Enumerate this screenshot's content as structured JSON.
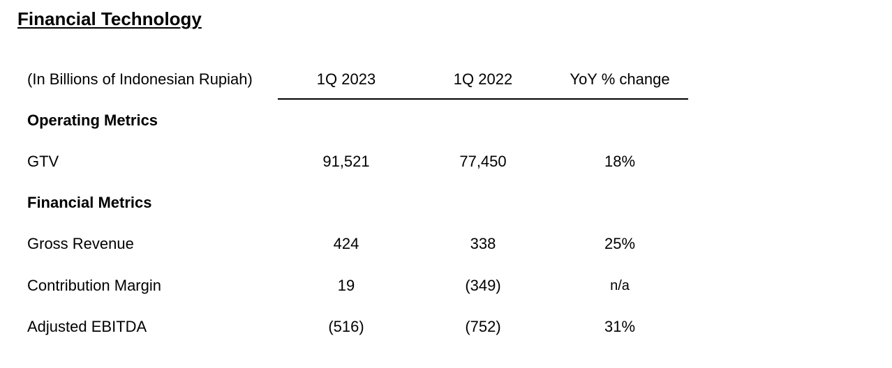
{
  "title": "Financial Technology",
  "table": {
    "unit_label": "(In Billions of Indonesian Rupiah)",
    "columns": [
      "1Q 2023",
      "1Q 2022",
      "YoY % change"
    ],
    "sections": [
      {
        "label": "Operating Metrics",
        "rows": [
          {
            "label": "GTV",
            "values": [
              "91,521",
              "77,450",
              "18%"
            ]
          }
        ]
      },
      {
        "label": "Financial Metrics",
        "rows": [
          {
            "label": "Gross Revenue",
            "values": [
              "424",
              "338",
              "25%"
            ]
          },
          {
            "label": "Contribution Margin",
            "values": [
              "19",
              "(349)",
              "n/a"
            ]
          },
          {
            "label": "Adjusted EBITDA",
            "values": [
              "(516)",
              "(752)",
              "31%"
            ]
          }
        ]
      }
    ]
  }
}
